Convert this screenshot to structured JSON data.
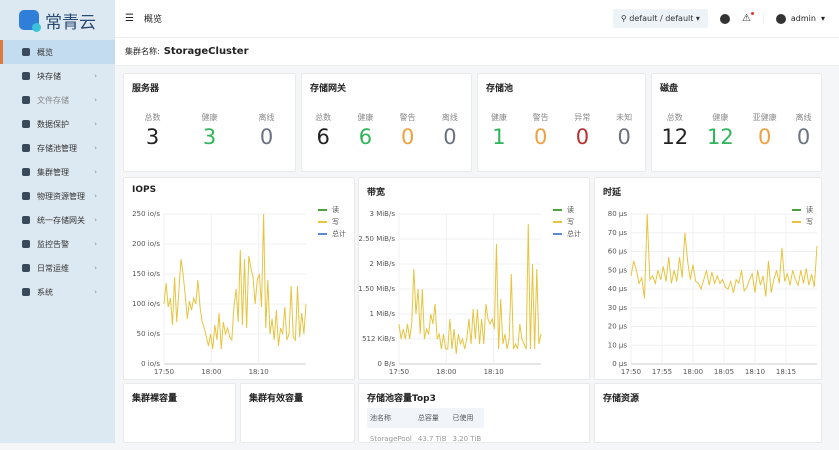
{
  "app": {
    "name": "常青云"
  },
  "header": {
    "page": "概览",
    "project": "default / default",
    "user": "admin"
  },
  "sidebar": {
    "items": [
      {
        "label": "概览",
        "active": true
      },
      {
        "label": "块存储"
      },
      {
        "label": "文件存储",
        "dim": true
      },
      {
        "label": "数据保护"
      },
      {
        "label": "存储池管理"
      },
      {
        "label": "集群管理"
      },
      {
        "label": "物理资源管理"
      },
      {
        "label": "统一存储网关"
      },
      {
        "label": "监控告警"
      },
      {
        "label": "日常运维"
      },
      {
        "label": "系统"
      }
    ]
  },
  "cluster": {
    "label": "集群名称:",
    "name": "StorageCluster"
  },
  "colors": {
    "healthy": "#2fb55a",
    "warning": "#f0a040",
    "error": "#b83030",
    "offline": "#6b7280",
    "total": "#222222",
    "read": "#4aa33a",
    "write": "#e6c440",
    "sum": "#5b8bd8"
  },
  "stats": [
    {
      "title": "服务器",
      "items": [
        {
          "label": "总数",
          "value": "3",
          "color": "total"
        },
        {
          "label": "健康",
          "value": "3",
          "color": "healthy"
        },
        {
          "label": "离线",
          "value": "0",
          "color": "offline"
        }
      ]
    },
    {
      "title": "存储网关",
      "items": [
        {
          "label": "总数",
          "value": "6",
          "color": "total"
        },
        {
          "label": "健康",
          "value": "6",
          "color": "healthy"
        },
        {
          "label": "警告",
          "value": "0",
          "color": "warning"
        },
        {
          "label": "离线",
          "value": "0",
          "color": "offline"
        }
      ]
    },
    {
      "title": "存储池",
      "items": [
        {
          "label": "健康",
          "value": "1",
          "color": "healthy"
        },
        {
          "label": "警告",
          "value": "0",
          "color": "warning"
        },
        {
          "label": "异常",
          "value": "0",
          "color": "error"
        },
        {
          "label": "未知",
          "value": "0",
          "color": "offline"
        }
      ]
    },
    {
      "title": "磁盘",
      "items": [
        {
          "label": "总数",
          "value": "12",
          "color": "total"
        },
        {
          "label": "健康",
          "value": "12",
          "color": "healthy"
        },
        {
          "label": "亚健康",
          "value": "0",
          "color": "warning"
        },
        {
          "label": "离线",
          "value": "0",
          "color": "offline"
        }
      ]
    }
  ],
  "chart_data": [
    {
      "type": "line",
      "title": "IOPS",
      "legend": [
        "读",
        "写",
        "总计"
      ],
      "ylim": [
        0,
        250
      ],
      "yticks": [
        "0 io/s",
        "50 io/s",
        "100 io/s",
        "150 io/s",
        "200 io/s",
        "250 io/s"
      ],
      "xticks": [
        "17:50",
        "18:00",
        "18:10"
      ],
      "xrange_minutes": [
        0,
        30
      ],
      "series": [
        {
          "name": "写",
          "values": [
            100,
            135,
            95,
            110,
            65,
            145,
            70,
            120,
            175,
            150,
            115,
            75,
            105,
            90,
            110,
            100,
            140,
            95,
            70,
            60,
            45,
            30,
            50,
            25,
            65,
            40,
            85,
            25,
            70,
            50,
            60,
            45,
            40,
            95,
            125,
            70,
            190,
            65,
            175,
            60,
            180,
            160,
            145,
            100,
            140,
            150,
            95,
            250,
            60,
            140,
            50,
            75,
            40,
            90,
            30,
            60,
            50,
            95,
            40,
            50,
            130,
            45,
            40,
            130,
            45,
            85,
            50,
            100
          ]
        }
      ]
    },
    {
      "type": "line",
      "title": "带宽",
      "legend": [
        "读",
        "写",
        "总计"
      ],
      "ylim": [
        0,
        3
      ],
      "yticks": [
        "0 B/s",
        "512 KiB/s",
        "1 MiB/s",
        "1.50 MiB/s",
        "2 MiB/s",
        "2.50 MiB/s",
        "3 MiB/s"
      ],
      "xticks": [
        "17:50",
        "18:00",
        "18:10"
      ],
      "xrange_minutes": [
        0,
        30
      ],
      "series": [
        {
          "name": "写",
          "values": [
            0.8,
            0.5,
            0.7,
            0.5,
            0.8,
            0.5,
            0.8,
            1.9,
            1.0,
            1.5,
            0.6,
            1.5,
            0.5,
            0.7,
            0.6,
            1.0,
            0.8,
            1.2,
            0.5,
            0.6,
            0.3,
            0.6,
            0.3,
            0.3,
            0.9,
            0.3,
            0.7,
            0.2,
            0.6,
            0.4,
            0.5,
            0.3,
            0.5,
            0.9,
            0.4,
            1.1,
            0.5,
            1.1,
            0.4,
            0.9,
            0.4,
            1.2,
            0.9,
            0.8,
            0.9,
            0.7,
            2.4,
            0.3,
            1.3,
            0.4,
            0.6,
            0.3,
            0.5,
            1.8,
            0.3,
            0.4,
            0.3,
            0.8,
            0.5,
            0.4,
            0.3,
            2.8,
            0.3,
            2.0,
            0.3,
            1.9,
            0.4,
            0.6
          ]
        }
      ]
    },
    {
      "type": "line",
      "title": "时延",
      "legend": [
        "读",
        "写"
      ],
      "ylim": [
        0,
        80
      ],
      "yticks": [
        "0 µs",
        "10 µs",
        "20 µs",
        "30 µs",
        "40 µs",
        "50 µs",
        "60 µs",
        "70 µs",
        "80 µs"
      ],
      "xticks": [
        "17:50",
        "17:55",
        "18:00",
        "18:05",
        "18:10",
        "18:15"
      ],
      "xrange_minutes": [
        0,
        30
      ],
      "series": [
        {
          "name": "写",
          "values": [
            47,
            55,
            50,
            43,
            46,
            35,
            80,
            45,
            47,
            43,
            50,
            45,
            52,
            44,
            57,
            43,
            50,
            44,
            57,
            46,
            70,
            55,
            45,
            53,
            44,
            43,
            40,
            45,
            50,
            42,
            49,
            43,
            47,
            43,
            45,
            41,
            40,
            44,
            38,
            45,
            43,
            50,
            39,
            41,
            45,
            48,
            38,
            50,
            42,
            47,
            36,
            55,
            38,
            45,
            50,
            43,
            62,
            44,
            48,
            42,
            50,
            45,
            42,
            50,
            43,
            51,
            42,
            48,
            41,
            63
          ]
        }
      ]
    }
  ],
  "bottom": {
    "raw": "集群裸容量",
    "effective": "集群有效容量",
    "top3": {
      "title": "存储池容量Top3",
      "headers": [
        "池名称",
        "总容量",
        "已使用"
      ],
      "rows": [
        [
          "StoragePool",
          "43.7 TiB",
          "3.20 TiB"
        ]
      ]
    },
    "resources": "存储资源"
  }
}
